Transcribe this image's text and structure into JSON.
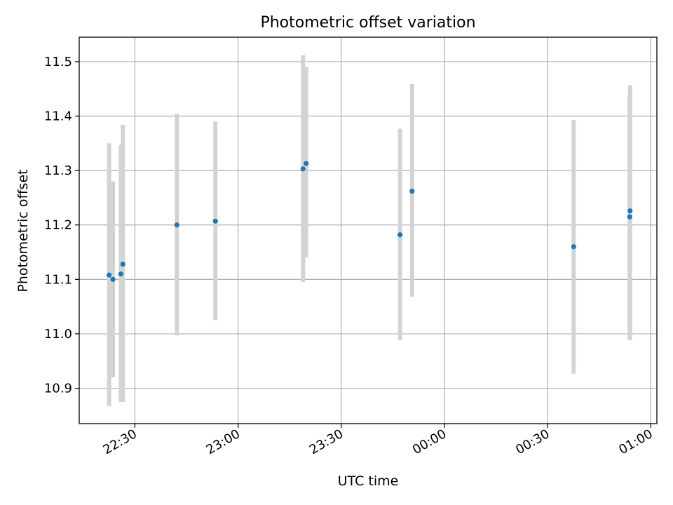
{
  "chart_data": {
    "type": "scatter",
    "title": "Photometric offset variation",
    "xlabel": "UTC time",
    "ylabel": "Photometric offset",
    "x_ticks": [
      "22:30",
      "23:00",
      "23:30",
      "00:00",
      "00:30",
      "01:00"
    ],
    "x_tick_hours": [
      22.5,
      23.0,
      23.5,
      24.0,
      24.5,
      25.0
    ],
    "y_ticks": [
      "10.9",
      "11.0",
      "11.1",
      "11.2",
      "11.3",
      "11.4",
      "11.5"
    ],
    "y_tick_values": [
      10.9,
      11.0,
      11.1,
      11.2,
      11.3,
      11.4,
      11.5
    ],
    "xlim": [
      22.23,
      25.03
    ],
    "ylim": [
      10.835,
      11.545
    ],
    "grid": true,
    "point_color": "#1f77b4",
    "errorbar_color": "#d3d3d3",
    "points": [
      {
        "t": "22:22:30",
        "y": 11.108,
        "ylow": 10.867,
        "yhigh": 11.35
      },
      {
        "t": "22:23:36",
        "y": 11.1,
        "ylow": 10.92,
        "yhigh": 11.28
      },
      {
        "t": "22:25:54",
        "y": 11.11,
        "ylow": 10.875,
        "yhigh": 11.347
      },
      {
        "t": "22:26:30",
        "y": 11.128,
        "ylow": 10.875,
        "yhigh": 11.384
      },
      {
        "t": "22:42:12",
        "y": 11.2,
        "ylow": 10.997,
        "yhigh": 11.404
      },
      {
        "t": "22:53:24",
        "y": 11.207,
        "ylow": 11.025,
        "yhigh": 11.39
      },
      {
        "t": "23:18:54",
        "y": 11.303,
        "ylow": 11.095,
        "yhigh": 11.512
      },
      {
        "t": "23:19:48",
        "y": 11.313,
        "ylow": 11.14,
        "yhigh": 11.49
      },
      {
        "t": "23:47:06",
        "y": 11.182,
        "ylow": 10.988,
        "yhigh": 11.377
      },
      {
        "t": "23:50:36",
        "y": 11.262,
        "ylow": 11.068,
        "yhigh": 11.459
      },
      {
        "t": "00:37:36",
        "y": 11.16,
        "ylow": 10.927,
        "yhigh": 11.393
      },
      {
        "t": "00:53:54",
        "y": 11.215,
        "ylow": 10.988,
        "yhigh": 11.44
      },
      {
        "t": "00:54:00",
        "y": 11.226,
        "ylow": 10.99,
        "yhigh": 11.457
      }
    ]
  }
}
